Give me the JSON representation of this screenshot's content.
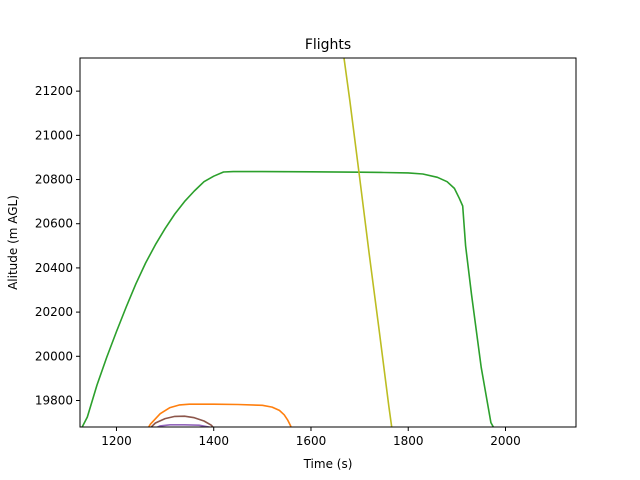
{
  "chart_data": {
    "type": "line",
    "title": "Flights",
    "xlabel": "Time (s)",
    "ylabel": "Alitude (m AGL)",
    "xlim": [
      1125,
      2145
    ],
    "ylim": [
      19680,
      21350
    ],
    "xticks": [
      1200,
      1400,
      1600,
      1800,
      2000
    ],
    "yticks": [
      19800,
      20000,
      20200,
      20400,
      20600,
      20800,
      21000,
      21200
    ],
    "grid": false,
    "legend": "none",
    "series": [
      {
        "color": "#2ca02c",
        "x": [
          1120,
          1140,
          1160,
          1180,
          1200,
          1220,
          1240,
          1260,
          1280,
          1300,
          1320,
          1340,
          1360,
          1380,
          1400,
          1420,
          1440,
          1500,
          1600,
          1700,
          1750,
          1800,
          1830,
          1860,
          1880,
          1895,
          1905,
          1912,
          1918,
          1930,
          1950,
          1970,
          1985
        ],
        "y": [
          19640,
          19725,
          19870,
          19995,
          20112,
          20223,
          20328,
          20422,
          20505,
          20578,
          20644,
          20700,
          20748,
          20790,
          20815,
          20834,
          20836,
          20836,
          20835,
          20833,
          20832,
          20830,
          20825,
          20810,
          20790,
          20760,
          20715,
          20680,
          20500,
          20280,
          19950,
          19700,
          19640
        ]
      },
      {
        "color": "#bcbd22",
        "x": [
          1668,
          1680,
          1700,
          1720,
          1740,
          1760,
          1766
        ],
        "y": [
          21350,
          21155,
          20810,
          20460,
          20120,
          19775,
          19680
        ]
      },
      {
        "color": "#ff7f0e",
        "x": [
          1255,
          1270,
          1290,
          1310,
          1330,
          1350,
          1400,
          1450,
          1500,
          1520,
          1535,
          1545,
          1552,
          1558,
          1563
        ],
        "y": [
          19640,
          19693,
          19740,
          19768,
          19780,
          19783,
          19783,
          19782,
          19778,
          19770,
          19755,
          19735,
          19712,
          19685,
          19650
        ]
      },
      {
        "color": "#8c564b",
        "x": [
          1262,
          1280,
          1300,
          1320,
          1340,
          1360,
          1380,
          1395,
          1402
        ],
        "y": [
          19660,
          19698,
          19718,
          19728,
          19729,
          19722,
          19707,
          19688,
          19670
        ]
      },
      {
        "color": "#9467bd",
        "x": [
          1270,
          1290,
          1310,
          1340,
          1370,
          1390,
          1400
        ],
        "y": [
          19665,
          19685,
          19690,
          19690,
          19688,
          19680,
          19672
        ]
      }
    ]
  }
}
